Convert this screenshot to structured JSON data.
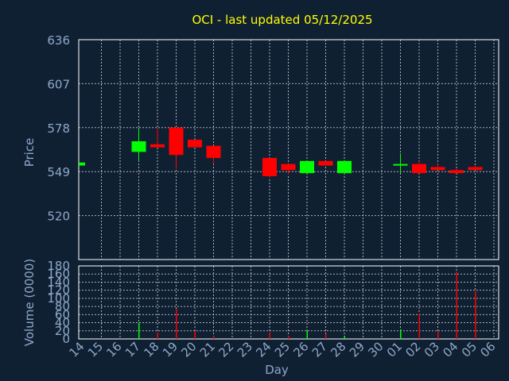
{
  "colors": {
    "background": "#102033",
    "plot_border": "#FFFFFF",
    "grid": "#C8C8C8",
    "axis_text": "#8EA8C8",
    "title": "#FFFF00",
    "up": "#00FF00",
    "down": "#FF0000"
  },
  "chart_data": [
    {
      "type": "candlestick",
      "title": "OCI - last updated 05/12/2025",
      "ylabel": "Price",
      "ylim": [
        491,
        636
      ],
      "yticks": [
        636,
        607,
        578,
        549,
        520
      ],
      "grid": true,
      "categories": [
        "14",
        "15",
        "16",
        "17",
        "18",
        "19",
        "20",
        "21",
        "22",
        "23",
        "24",
        "25",
        "26",
        "27",
        "28",
        "29",
        "30",
        "01",
        "02",
        "03",
        "04",
        "05",
        "06"
      ],
      "candles": [
        {
          "day": "14",
          "open": 553,
          "close": 555,
          "high": 555,
          "low": 553
        },
        {
          "day": "17",
          "open": 562,
          "close": 569,
          "high": 578,
          "low": 556
        },
        {
          "day": "18",
          "open": 567,
          "close": 565,
          "high": 578,
          "low": 565
        },
        {
          "day": "19",
          "open": 578,
          "close": 560,
          "high": 578,
          "low": 551
        },
        {
          "day": "20",
          "open": 570,
          "close": 565,
          "high": 570,
          "low": 565
        },
        {
          "day": "21",
          "open": 566,
          "close": 558,
          "high": 566,
          "low": 554
        },
        {
          "day": "24",
          "open": 558,
          "close": 546,
          "high": 558,
          "low": 545
        },
        {
          "day": "25",
          "open": 554,
          "close": 550,
          "high": 554,
          "low": 547
        },
        {
          "day": "26",
          "open": 548,
          "close": 556,
          "high": 556,
          "low": 548
        },
        {
          "day": "27",
          "open": 556,
          "close": 553,
          "high": 556,
          "low": 553
        },
        {
          "day": "28",
          "open": 548,
          "close": 556,
          "high": 556,
          "low": 548
        },
        {
          "day": "01",
          "open": 553,
          "close": 554,
          "high": 561,
          "low": 548
        },
        {
          "day": "02",
          "open": 554,
          "close": 548,
          "high": 556,
          "low": 548
        },
        {
          "day": "03",
          "open": 552,
          "close": 550,
          "high": 554,
          "low": 550
        },
        {
          "day": "04",
          "open": 550,
          "close": 548,
          "high": 551,
          "low": 548
        },
        {
          "day": "05",
          "open": 552,
          "close": 550,
          "high": 553,
          "low": 550
        }
      ]
    },
    {
      "type": "bar",
      "ylabel": "Volume (0000)",
      "xlabel": "Day",
      "ylim": [
        0,
        180
      ],
      "yticks": [
        180,
        160,
        140,
        120,
        100,
        80,
        60,
        40,
        20,
        0
      ],
      "grid": true,
      "categories": [
        "14",
        "15",
        "16",
        "17",
        "18",
        "19",
        "20",
        "21",
        "22",
        "23",
        "24",
        "25",
        "26",
        "27",
        "28",
        "29",
        "30",
        "01",
        "02",
        "03",
        "04",
        "05",
        "06"
      ],
      "values": [
        2,
        0,
        0,
        40,
        16,
        74,
        20,
        8,
        0,
        0,
        16,
        8,
        20,
        12,
        8,
        0,
        0,
        24,
        62,
        18,
        166,
        118,
        0
      ],
      "bar_direction": [
        "up",
        "none",
        "none",
        "up",
        "down",
        "down",
        "down",
        "down",
        "none",
        "none",
        "down",
        "down",
        "up",
        "down",
        "up",
        "none",
        "none",
        "up",
        "down",
        "down",
        "down",
        "down",
        "none"
      ]
    }
  ]
}
